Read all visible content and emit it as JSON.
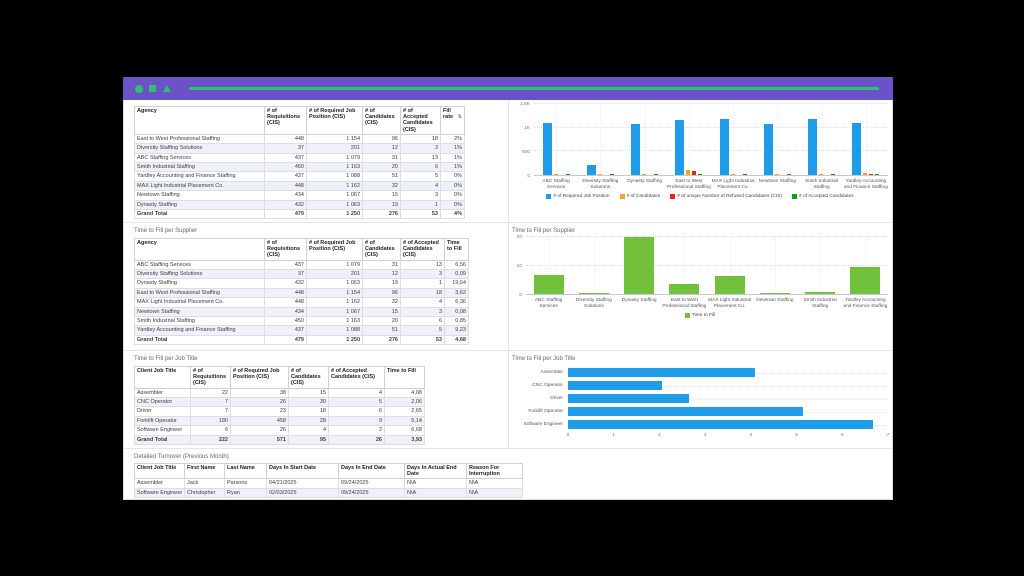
{
  "colors": {
    "titlebar_bar": "#6b52c9",
    "titlebar_accent": "#2bc46e",
    "bar_blue": "#1e9ce8",
    "bar_orange": "#f7a528",
    "bar_red": "#e8211b",
    "bar_green_accepted": "#12a112",
    "bar_green_time": "#72c13c"
  },
  "panels": {
    "tts_table": {
      "title": "Time to Fill per Supplier"
    },
    "tts_chart": {
      "title": "Time to Fill per Supplier"
    },
    "ttj_table": {
      "title": "Time to Fill per Job Title"
    },
    "ttj_chart": {
      "title": "Time to Fill per Job Title"
    },
    "turnover": {
      "title": "Detailed Turnover (Previous Month)"
    }
  },
  "tables": {
    "agency_fill": {
      "headers": [
        "Agency",
        "# of Requisitions (CIS)",
        "# of Required Job Position (CIS)",
        "# of Candidates (CIS)",
        "# of Accepted Candidates (CIS)",
        "Fill rate"
      ],
      "sort_col": 5,
      "sort_icon": "⇅",
      "rows": [
        [
          "East to West Professional Staffing",
          "448",
          "1 154",
          "96",
          "18",
          "2%"
        ],
        [
          "Diversity Staffing Solutions",
          "37",
          "201",
          "12",
          "3",
          "1%"
        ],
        [
          "ABC Staffing Services",
          "437",
          "1 079",
          "31",
          "13",
          "1%"
        ],
        [
          "Smith Industrial Staffing",
          "450",
          "1 163",
          "20",
          "6",
          "1%"
        ],
        [
          "Yardley Accounting and Finance Staffing",
          "437",
          "1 088",
          "51",
          "5",
          "0%"
        ],
        [
          "MAX Light Industrial Placement Co.",
          "448",
          "1 162",
          "32",
          "4",
          "0%"
        ],
        [
          "Newtown Staffing",
          "434",
          "1 067",
          "15",
          "3",
          "0%"
        ],
        [
          "Dynasty Staffing",
          "432",
          "1 063",
          "19",
          "1",
          "0%"
        ]
      ],
      "total": [
        "Grand Total",
        "479",
        "1 250",
        "276",
        "53",
        "4%"
      ]
    },
    "tts": {
      "headers": [
        "Agency",
        "# of Requisitions (CIS)",
        "# of Required Job Position (CIS)",
        "# of Candidates (CIS)",
        "# of Accepted Candidates (CIS)",
        "Time to Fill"
      ],
      "rows": [
        [
          "ABC Staffing Services",
          "437",
          "1 079",
          "31",
          "13",
          "6,56"
        ],
        [
          "Diversity Staffing Solutions",
          "37",
          "201",
          "12",
          "3",
          "0,09"
        ],
        [
          "Dynasty Staffing",
          "432",
          "1 063",
          "19",
          "1",
          "19,64"
        ],
        [
          "East to West Professional Staffing",
          "448",
          "1 154",
          "96",
          "18",
          "3,62"
        ],
        [
          "MAX Light Industrial Placement Co.",
          "448",
          "1 162",
          "32",
          "4",
          "6,36"
        ],
        [
          "Newtown Staffing",
          "434",
          "1 067",
          "15",
          "3",
          "0,08"
        ],
        [
          "Smith Industrial Staffing",
          "450",
          "1 163",
          "20",
          "6",
          "0,85"
        ],
        [
          "Yardley Accounting and Finance Staffing",
          "437",
          "1 088",
          "51",
          "5",
          "9,23"
        ]
      ],
      "total": [
        "Grand Total",
        "479",
        "1 250",
        "276",
        "53",
        "4,68"
      ]
    },
    "ttj": {
      "headers": [
        "Client Job Title",
        "# of Requisitions (CIS)",
        "# of Required Job Position (CIS)",
        "# of Candidates (CIS)",
        "# of Accepted Candidates (CIS)",
        "Time to Fill"
      ],
      "rows": [
        [
          "Assembler",
          "22",
          "38",
          "15",
          "4",
          "4,08"
        ],
        [
          "CNC Operator",
          "7",
          "26",
          "30",
          "5",
          "2,06"
        ],
        [
          "Driver",
          "7",
          "23",
          "18",
          "6",
          "2,65"
        ],
        [
          "Forklift Operator",
          "180",
          "458",
          "28",
          "9",
          "5,14"
        ],
        [
          "Software Engineer",
          "6",
          "26",
          "4",
          "2",
          "6,68"
        ]
      ],
      "total": [
        "Grand Total",
        "222",
        "571",
        "95",
        "26",
        "3,93"
      ]
    },
    "turnover": {
      "headers": [
        "Client Job Title",
        "First Name",
        "Last Name",
        "Days In Start Date",
        "Days In End Date",
        "Days In Actual End Date",
        "Reason For Interruption"
      ],
      "rows": [
        [
          "Assembler",
          "Jack",
          "Parsons",
          "04/21/2025",
          "09/24/2025",
          "N\\A",
          "N\\A"
        ],
        [
          "Software Engineer",
          "Christopher",
          "Ryan",
          "02/03/2025",
          "09/24/2025",
          "N\\A",
          "N\\A"
        ]
      ]
    }
  },
  "chart_data": [
    {
      "type": "bar",
      "title": "",
      "categories": [
        "ABC Staffing Services",
        "Diversity Staffing Solutions",
        "Dynasty Staffing",
        "East to West Professional Staffing",
        "MAX Light Industrial Placement Co.",
        "Newtown Staffing",
        "Smith Industrial Staffing",
        "Yardley Accounting and Finance Staffing"
      ],
      "series": [
        {
          "name": "# of Required Job Position",
          "color": "#1e9ce8",
          "values": [
            1079,
            201,
            1063,
            1154,
            1162,
            1067,
            1163,
            1088
          ]
        },
        {
          "name": "# of Candidates",
          "color": "#f7a528",
          "values": [
            31,
            12,
            19,
            96,
            32,
            15,
            20,
            51
          ]
        },
        {
          "name": "# of unique Number of Refused Candidates (CIS)",
          "color": "#e8211b",
          "values": [
            0,
            0,
            0,
            78,
            0,
            0,
            0,
            30
          ]
        },
        {
          "name": "# of Accepted Candidates",
          "color": "#12a112",
          "values": [
            13,
            3,
            1,
            18,
            4,
            3,
            6,
            5
          ]
        }
      ],
      "ylim": [
        0,
        1500
      ],
      "y_ticks": [
        {
          "v": 0,
          "label": "0"
        },
        {
          "v": 500,
          "label": "500"
        },
        {
          "v": 1000,
          "label": "1K"
        },
        {
          "v": 1500,
          "label": "1,5K"
        }
      ],
      "legend_position": "bottom",
      "grid": true
    },
    {
      "type": "bar",
      "title": "Time to Fill per Supplier",
      "categories": [
        "ABC Staffing Services",
        "Diversity Staffing Solutions",
        "Dynasty Staffing",
        "East to West Professional Staffing",
        "MAX Light Industrial Placement Co.",
        "Newtown Staffing",
        "Smith Industrial Staffing",
        "Yardley Accounting and Finance Staffing"
      ],
      "series": [
        {
          "name": "Time to Fill",
          "color": "#72c13c",
          "values": [
            6.56,
            0.09,
            19.64,
            3.62,
            6.36,
            0.08,
            0.85,
            9.23
          ]
        }
      ],
      "ylim": [
        0,
        20
      ],
      "y_ticks": [
        {
          "v": 0,
          "label": "0"
        },
        {
          "v": 10,
          "label": "10"
        },
        {
          "v": 20,
          "label": "20"
        }
      ],
      "legend_position": "bottom",
      "grid": true
    },
    {
      "type": "bar-horizontal",
      "title": "Time to Fill per Job Title",
      "categories": [
        "Assembler",
        "CNC Operator",
        "Driver",
        "Forklift Operator",
        "Software Engineer"
      ],
      "series": [
        {
          "name": "Time to Fill",
          "color": "#1e9ce8",
          "values": [
            4.08,
            2.06,
            2.65,
            5.14,
            6.68
          ]
        }
      ],
      "xlim": [
        0,
        7
      ],
      "x_ticks": [
        "0",
        "1",
        "2",
        "3",
        "4",
        "5",
        "6",
        "7"
      ],
      "legend_position": "none",
      "grid": true
    }
  ]
}
